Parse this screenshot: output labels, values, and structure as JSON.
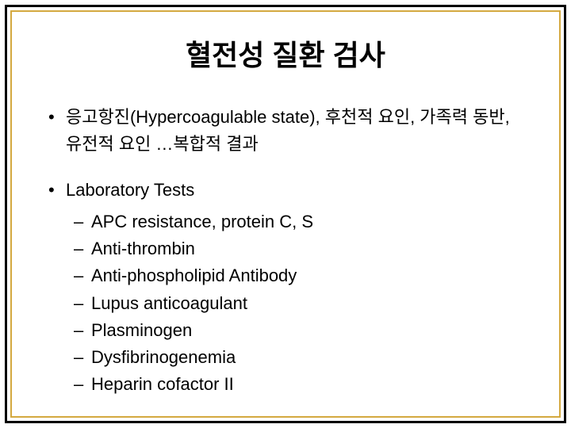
{
  "slide": {
    "title": "혈전성 질환 검사",
    "title_fontsize": 36,
    "body_fontsize": 22,
    "text_color": "#000000",
    "outer_border_color": "#000000",
    "inner_border_color": "#d4a940",
    "background_color": "#ffffff",
    "bullets": [
      {
        "text": "응고항진(Hypercoagulable state), 후천적 요인, 가족력 동반, 유전적 요인 …복합적 결과",
        "sub": []
      },
      {
        "text": "Laboratory Tests",
        "sub": [
          "APC resistance, protein C, S",
          "Anti-thrombin",
          "Anti-phospholipid Antibody",
          "Lupus anticoagulant",
          "Plasminogen",
          "Dysfibrinogenemia",
          "Heparin cofactor II"
        ]
      }
    ]
  }
}
